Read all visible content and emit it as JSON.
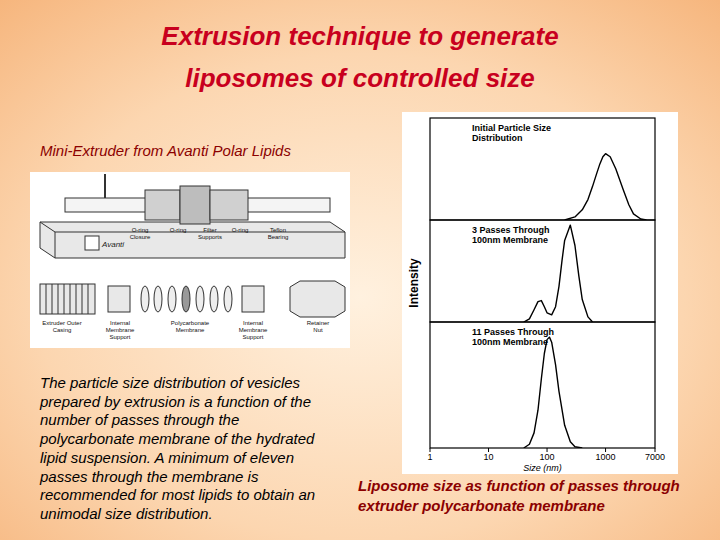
{
  "slide": {
    "title": [
      "Extrusion technique to generate",
      "liposomes of controlled size"
    ],
    "subtitle": "Mini-Extruder from Avanti Polar Lipids",
    "body": [
      "The particle size distribution of vesicles",
      "prepared by extrusion is a function of the",
      "number of passes through the",
      "polycarbonate membrane of the hydrated",
      "lipid suspension.  A minimum of eleven",
      "passes through the membrane is",
      "recommended for most lipids to obtain an",
      "unimodal size distribution."
    ],
    "caption": [
      "Liposome size as function of passes through",
      "extruder polycarbonate membrane"
    ]
  },
  "diagram": {
    "brand": "Avanti",
    "labels_top": [
      [
        "O-ring",
        "Closure"
      ],
      [
        "O-ring"
      ],
      [
        "Filter",
        "Supports"
      ],
      [
        "O-ring"
      ],
      [
        "Teflon",
        "Bearing"
      ]
    ],
    "labels_bottom": [
      [
        "Extruder Outer",
        "Casing"
      ],
      [
        "Internal",
        "Membrane",
        "Support"
      ],
      [
        "Polycarbonate",
        "Membrane"
      ],
      [
        "Internal",
        "Membrane",
        "Support"
      ],
      [
        "Retainer",
        "Nut"
      ]
    ]
  },
  "chart_data": [
    {
      "type": "line",
      "title": [
        "Initial Particle Size",
        "Distribution"
      ],
      "ylabel": "Intensity",
      "x": [
        200,
        300,
        400,
        500,
        600,
        700,
        800,
        900,
        1000,
        1200,
        1500,
        2000,
        2500,
        3000,
        4000,
        5000
      ],
      "values": [
        0,
        0.03,
        0.1,
        0.2,
        0.33,
        0.45,
        0.55,
        0.62,
        0.65,
        0.62,
        0.5,
        0.3,
        0.15,
        0.06,
        0.01,
        0
      ],
      "xlim": [
        1,
        7000
      ],
      "ylim": [
        0,
        1
      ],
      "log": "x",
      "grid": false,
      "tick_labels": false,
      "color": "#000000"
    },
    {
      "type": "line",
      "title": [
        "3 Passes Through",
        "100nm Membrane"
      ],
      "x": [
        40,
        50,
        60,
        70,
        80,
        90,
        100,
        120,
        140,
        160,
        180,
        200,
        250,
        300,
        350,
        400,
        500,
        600
      ],
      "values": [
        0,
        0.03,
        0.12,
        0.2,
        0.21,
        0.15,
        0.09,
        0.07,
        0.15,
        0.35,
        0.6,
        0.8,
        0.95,
        0.75,
        0.45,
        0.22,
        0.05,
        0
      ],
      "xlim": [
        1,
        7000
      ],
      "ylim": [
        0,
        1
      ],
      "log": "x",
      "grid": false,
      "tick_labels": false,
      "color": "#000000"
    },
    {
      "type": "line",
      "title": [
        "11 Passes Through",
        "100nm Membrane"
      ],
      "xlabel": "Size (nm)",
      "x": [
        40,
        50,
        60,
        70,
        80,
        90,
        100,
        110,
        120,
        140,
        160,
        200,
        250,
        300,
        400
      ],
      "values": [
        0,
        0.03,
        0.12,
        0.3,
        0.55,
        0.75,
        0.86,
        0.88,
        0.84,
        0.66,
        0.45,
        0.18,
        0.05,
        0.01,
        0
      ],
      "xlim": [
        1,
        7000
      ],
      "ylim": [
        0,
        1
      ],
      "xticks": [
        1,
        10,
        100,
        1000,
        7000
      ],
      "log": "x",
      "grid": false,
      "tick_labels": "x",
      "color": "#000000"
    }
  ]
}
